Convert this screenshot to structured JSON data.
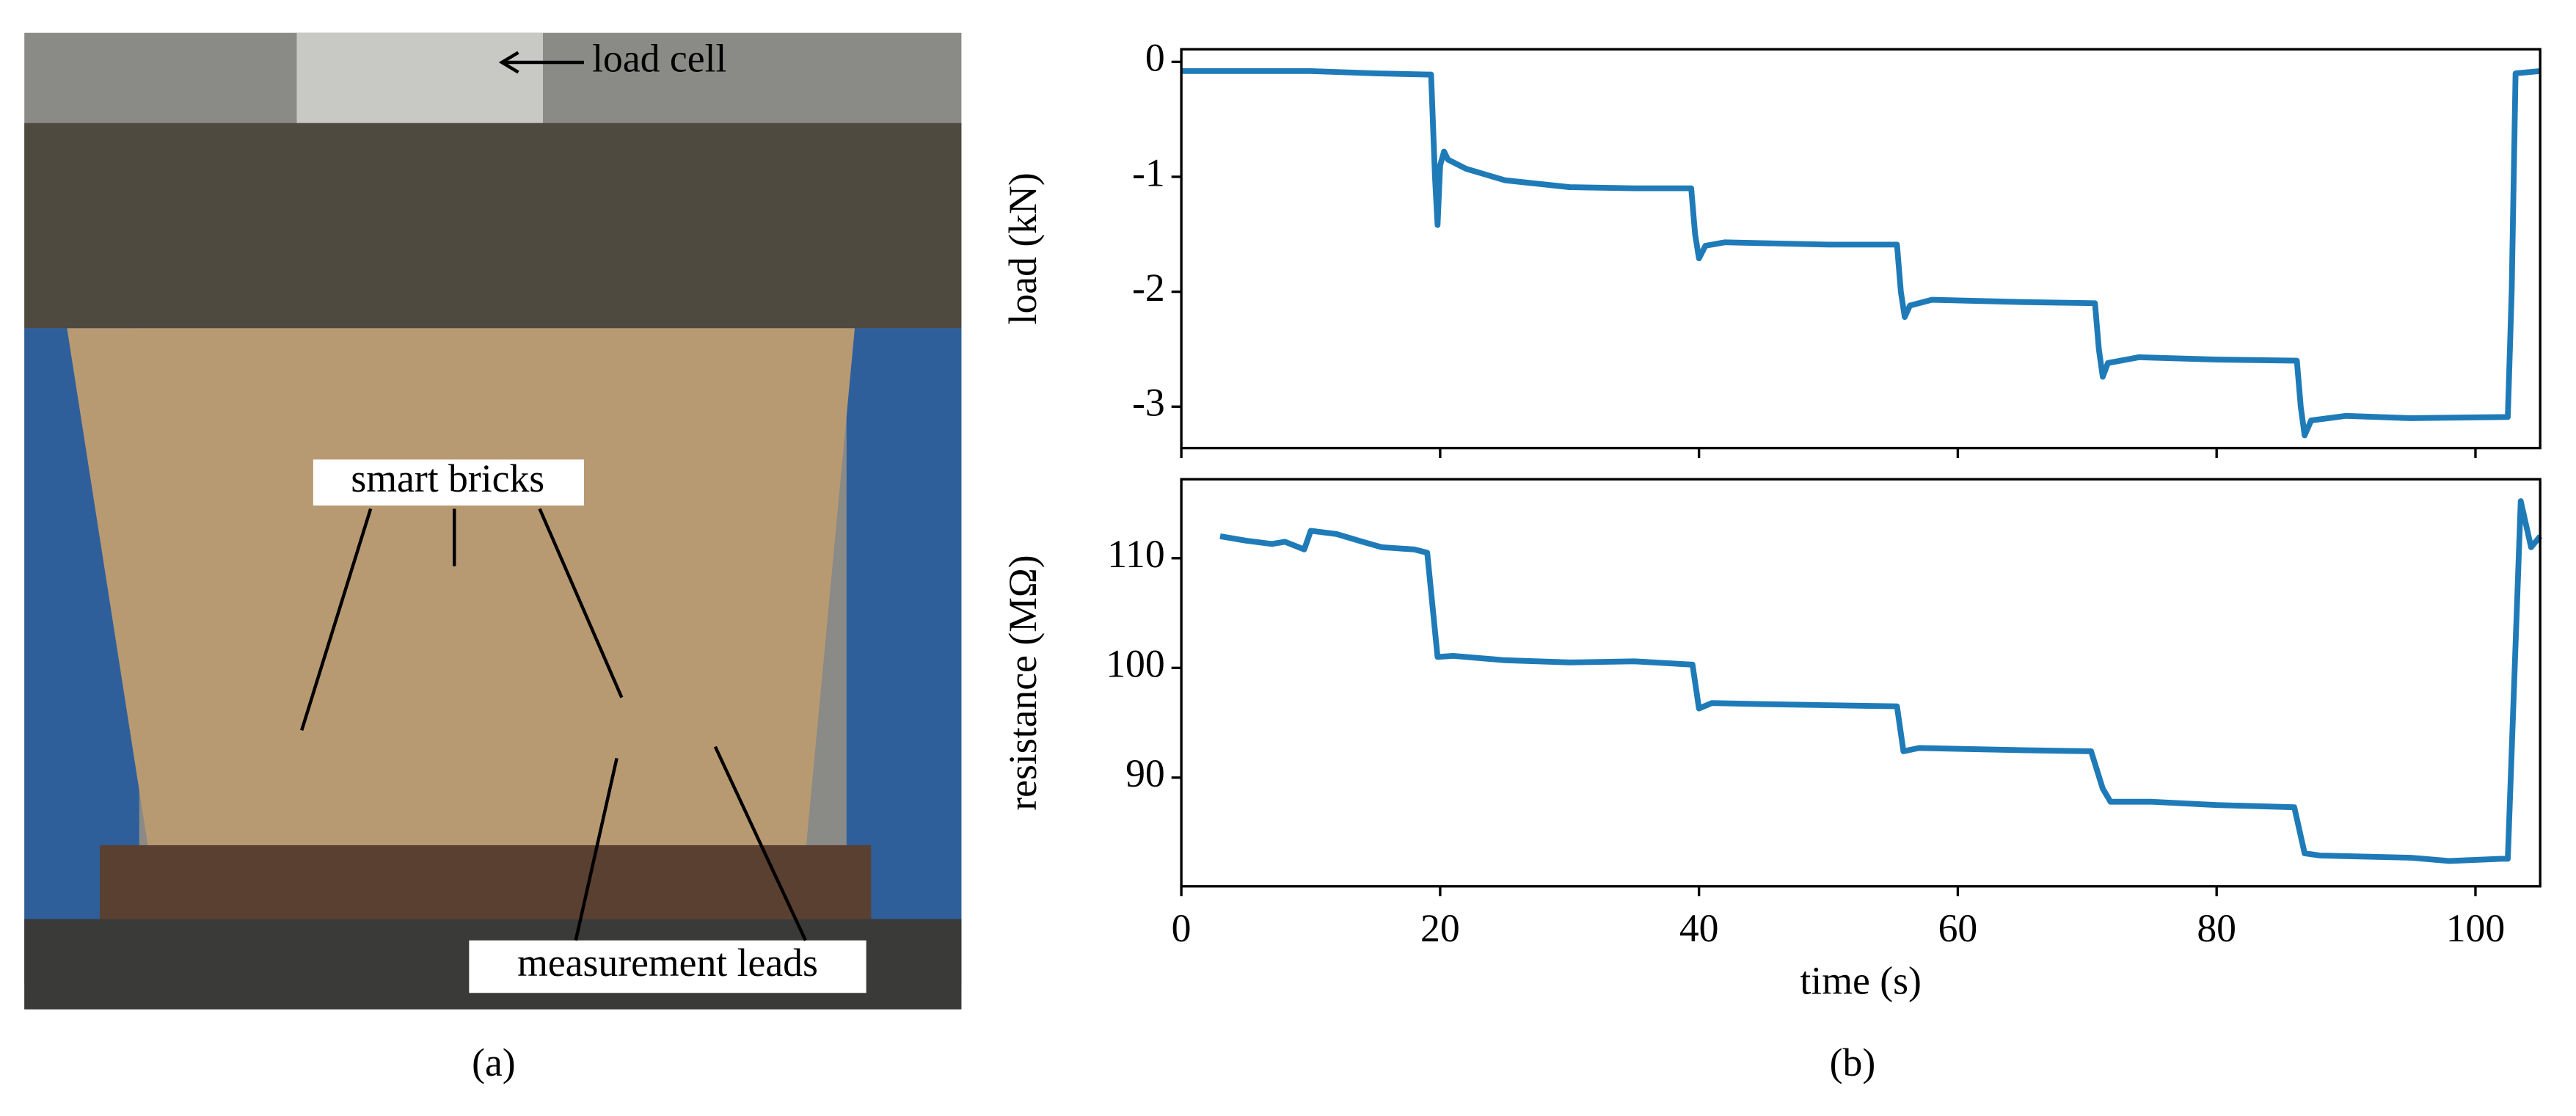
{
  "photo": {
    "labels": [
      "load cell",
      "smart bricks",
      "measurement leads"
    ],
    "caption": "(a)"
  },
  "chart_caption": "(b)",
  "chart_data": [
    {
      "type": "line",
      "ylabel": "load (kN)",
      "color": "#1f7bb8",
      "xlim": [
        0,
        105
      ],
      "ylim": [
        -3.36,
        0.11
      ],
      "xticks": [
        0,
        20,
        40,
        60,
        80,
        100
      ],
      "yticks": [
        0,
        -1,
        -2,
        -3
      ],
      "x": [
        0,
        10,
        15,
        19,
        19.3,
        19.6,
        19.8,
        20,
        20.3,
        20.6,
        22,
        25,
        30,
        35,
        39.4,
        39.7,
        40,
        40.5,
        42,
        50,
        55.3,
        55.6,
        55.9,
        56.3,
        58,
        65,
        70.6,
        70.9,
        71.2,
        71.6,
        74,
        80,
        86.2,
        86.5,
        86.8,
        87.3,
        90,
        95,
        102.5,
        102.8,
        103.1,
        105
      ],
      "values": [
        -0.08,
        -0.08,
        -0.1,
        -0.11,
        -0.11,
        -1.0,
        -1.42,
        -0.9,
        -0.78,
        -0.85,
        -0.93,
        -1.03,
        -1.09,
        -1.1,
        -1.1,
        -1.5,
        -1.71,
        -1.6,
        -1.57,
        -1.59,
        -1.59,
        -2.0,
        -2.22,
        -2.12,
        -2.07,
        -2.09,
        -2.1,
        -2.5,
        -2.74,
        -2.62,
        -2.57,
        -2.59,
        -2.6,
        -3.0,
        -3.25,
        -3.12,
        -3.08,
        -3.1,
        -3.09,
        -2.0,
        -0.1,
        -0.08
      ]
    },
    {
      "type": "line",
      "xlabel": "time (s)",
      "ylabel": "resistance (MΩ)",
      "color": "#1f7bb8",
      "xlim": [
        0,
        105
      ],
      "ylim": [
        80.1,
        117.2
      ],
      "xticks": [
        0,
        20,
        40,
        60,
        80,
        100
      ],
      "yticks": [
        90,
        100,
        110
      ],
      "x": [
        3,
        5,
        7,
        8,
        9.5,
        10,
        12,
        14,
        15.5,
        18,
        19,
        19.8,
        21,
        25,
        30,
        35,
        39.5,
        40,
        41,
        45,
        50,
        55.3,
        55.8,
        57,
        65,
        70.3,
        71.2,
        71.8,
        75,
        80,
        86,
        86.8,
        88,
        95,
        98,
        102,
        102.5,
        103.5,
        104.3,
        105
      ],
      "values": [
        112,
        111.6,
        111.3,
        111.5,
        110.8,
        112.5,
        112.2,
        111.5,
        111,
        110.8,
        110.5,
        101,
        101.1,
        100.7,
        100.5,
        100.6,
        100.3,
        96.3,
        96.8,
        96.7,
        96.6,
        96.5,
        92.4,
        92.7,
        92.5,
        92.4,
        89,
        87.8,
        87.8,
        87.5,
        87.3,
        83.1,
        82.9,
        82.7,
        82.4,
        82.6,
        82.6,
        115.2,
        111,
        112
      ]
    }
  ]
}
